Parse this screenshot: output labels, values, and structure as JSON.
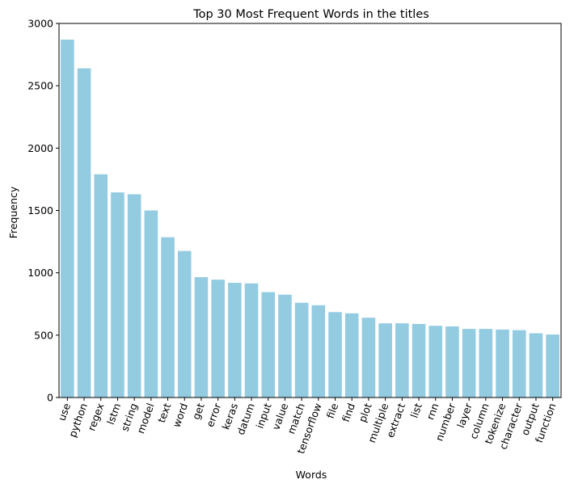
{
  "chart_data": {
    "type": "bar",
    "title": "Top 30 Most Frequent Words in the titles",
    "xlabel": "Words",
    "ylabel": "Frequency",
    "ylim": [
      0,
      3000
    ],
    "yticks": [
      0,
      500,
      1000,
      1500,
      2000,
      2500,
      3000
    ],
    "grid": false,
    "legend": "none",
    "bar_color": "#93cbe1",
    "categories": [
      "use",
      "python",
      "regex",
      "lstm",
      "string",
      "model",
      "text",
      "word",
      "get",
      "error",
      "keras",
      "datum",
      "input",
      "value",
      "match",
      "tensorflow",
      "file",
      "find",
      "plot",
      "multiple",
      "extract",
      "list",
      "rnn",
      "number",
      "layer",
      "column",
      "tokenize",
      "character",
      "output",
      "function"
    ],
    "values": [
      2870,
      2640,
      1790,
      1645,
      1630,
      1500,
      1285,
      1175,
      965,
      945,
      920,
      915,
      845,
      825,
      760,
      740,
      685,
      675,
      640,
      595,
      595,
      590,
      575,
      570,
      550,
      550,
      545,
      540,
      515,
      505
    ]
  }
}
